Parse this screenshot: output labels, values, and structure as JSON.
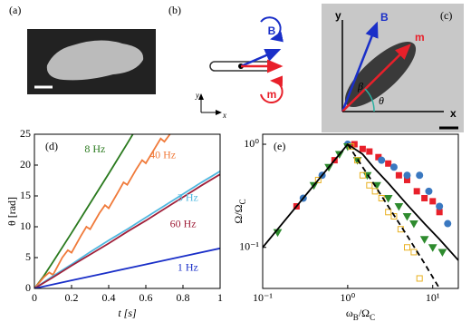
{
  "panels": {
    "a": {
      "label": "(a)"
    },
    "b": {
      "label": "(b)",
      "field": "B",
      "moment": "m",
      "y_axis": "y",
      "x_axis": "x"
    },
    "c": {
      "label": "(c)",
      "y_axis": "y",
      "x_axis": "x",
      "field": "B",
      "moment": "m",
      "beta": "β",
      "theta": "θ"
    }
  },
  "chart_data": [
    {
      "type": "line",
      "panel_label": "(d)",
      "x_label": "t [s]",
      "y_label": "θ [rad]",
      "xlim": [
        0,
        1
      ],
      "ylim": [
        0,
        25
      ],
      "xticks": [
        0,
        0.2,
        0.4,
        0.6,
        0.8,
        1
      ],
      "yticks": [
        0,
        5,
        10,
        15,
        20,
        25
      ],
      "series": [
        {
          "name": "8 Hz",
          "color": "#2a7a1e",
          "x": [
            0,
            0.05,
            0.1,
            0.2,
            0.3,
            0.4,
            0.5,
            0.53
          ],
          "values": [
            0,
            2,
            4.3,
            9,
            13.8,
            18.6,
            23.5,
            25
          ]
        },
        {
          "name": "40 Hz",
          "color": "#f07a3a",
          "x": [
            0,
            0.05,
            0.08,
            0.1,
            0.15,
            0.18,
            0.2,
            0.25,
            0.28,
            0.3,
            0.35,
            0.38,
            0.4,
            0.45,
            0.48,
            0.5,
            0.55,
            0.58,
            0.6,
            0.65,
            0.68,
            0.7,
            0.73
          ],
          "values": [
            0,
            1.8,
            2.6,
            2.2,
            5,
            6.2,
            5.8,
            8.5,
            10,
            9.6,
            12.2,
            13.5,
            13,
            15.6,
            17.2,
            16.8,
            19.4,
            20.8,
            20.3,
            22.8,
            24.3,
            23.8,
            25
          ]
        },
        {
          "name": "3 Hz",
          "color": "#4fb8e0",
          "x": [
            0,
            0.1,
            0.2,
            0.3,
            0.4,
            0.5,
            0.6,
            0.7,
            0.8,
            0.9,
            1
          ],
          "values": [
            0,
            2,
            3.9,
            5.9,
            7.8,
            9.6,
            11.5,
            13.4,
            15.3,
            17.2,
            19
          ]
        },
        {
          "name": "60 Hz",
          "color": "#a0203a",
          "x": [
            0,
            0.1,
            0.2,
            0.3,
            0.4,
            0.5,
            0.6,
            0.7,
            0.8,
            0.9,
            1
          ],
          "values": [
            0,
            1.8,
            3.7,
            5.5,
            7.3,
            9.2,
            11,
            12.9,
            14.8,
            16.7,
            18.5
          ]
        },
        {
          "name": "1 Hz",
          "color": "#1a2fc8",
          "x": [
            0,
            0.2,
            0.4,
            0.6,
            0.8,
            1
          ],
          "values": [
            0,
            1.3,
            2.6,
            3.9,
            5.2,
            6.5
          ]
        }
      ]
    },
    {
      "type": "scatter",
      "panel_label": "(e)",
      "log": true,
      "x_label": [
        {
          "text": "ω"
        },
        {
          "text": "B",
          "sub": true
        },
        {
          "text": "/Ω"
        },
        {
          "text": "C",
          "sub": true
        }
      ],
      "y_label": [
        {
          "text": "Ω/Ω"
        },
        {
          "text": "C",
          "sub": true
        }
      ],
      "xlim": [
        0.1,
        20
      ],
      "ylim": [
        0.04,
        1.25
      ],
      "xticks": [
        {
          "value": 0.1,
          "label": "10⁻¹"
        },
        {
          "value": 1,
          "label": "10⁰"
        },
        {
          "value": 10,
          "label": "10¹"
        }
      ],
      "yticks": [
        {
          "value": 0.1,
          "label": "10⁻¹"
        },
        {
          "value": 1,
          "label": "10⁰"
        }
      ],
      "series": [
        {
          "mode": "markers",
          "marker": "square",
          "color": "#e8202a",
          "x": [
            0.25,
            0.7,
            1.2,
            1.5,
            1.8,
            2.3,
            3,
            4,
            5,
            6.5,
            8,
            10,
            12
          ],
          "values": [
            0.25,
            0.7,
            1.0,
            0.9,
            0.85,
            0.75,
            0.65,
            0.5,
            0.45,
            0.35,
            0.3,
            0.28,
            0.22
          ]
        },
        {
          "mode": "markers",
          "marker": "circle",
          "color": "#3a78c0",
          "x": [
            0.3,
            0.5,
            1.0,
            2.5,
            3.5,
            5,
            7,
            9,
            12,
            15
          ],
          "values": [
            0.3,
            0.5,
            1.0,
            0.7,
            0.6,
            0.5,
            0.5,
            0.35,
            0.25,
            0.17
          ]
        },
        {
          "mode": "markers",
          "marker": "triangle",
          "color": "#2e8b2e",
          "x": [
            0.15,
            0.4,
            0.6,
            0.8,
            1.0,
            1.3,
            1.7,
            2.2,
            3,
            4,
            5,
            6,
            8,
            10,
            13
          ],
          "values": [
            0.14,
            0.4,
            0.6,
            0.8,
            0.95,
            0.7,
            0.5,
            0.4,
            0.3,
            0.25,
            0.2,
            0.17,
            0.12,
            0.1,
            0.09
          ]
        },
        {
          "mode": "markers",
          "marker": "open-square",
          "color": "#e8b020",
          "x": [
            0.45,
            1.1,
            1.3,
            1.5,
            1.8,
            2.1,
            2.5,
            3,
            3.5,
            4.2,
            5,
            6,
            7
          ],
          "values": [
            0.45,
            0.95,
            0.7,
            0.5,
            0.4,
            0.35,
            0.3,
            0.22,
            0.2,
            0.15,
            0.1,
            0.09,
            0.05
          ]
        },
        {
          "mode": "line",
          "color": "#000000",
          "x": [
            0.1,
            1,
            1.5,
            2,
            3,
            5,
            8,
            12,
            20
          ],
          "values": [
            0.1,
            1,
            0.8,
            0.6,
            0.42,
            0.26,
            0.17,
            0.12,
            0.075
          ]
        },
        {
          "mode": "dashed",
          "color": "#000000",
          "x": [
            1,
            1.5,
            2,
            3,
            5,
            8,
            12
          ],
          "values": [
            1,
            0.6,
            0.42,
            0.25,
            0.13,
            0.07,
            0.04
          ]
        }
      ]
    }
  ]
}
